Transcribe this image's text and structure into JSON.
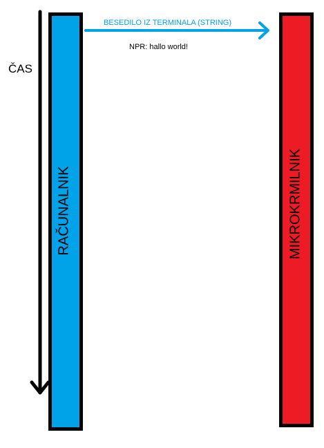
{
  "diagram": {
    "time_axis_label": "ČAS",
    "computer_label": "RAČUNALNIK",
    "microcontroller_label": "MIKROKRMILNIK",
    "message_label": "BESEDILO IZ TERMINALA (STRING)",
    "example_label": "NPR: hallo world!"
  },
  "colors": {
    "computer_bar": "#00a2e8",
    "microcontroller_bar": "#ed1c24",
    "message_arrow": "#00a2e8",
    "outline": "#000000"
  }
}
